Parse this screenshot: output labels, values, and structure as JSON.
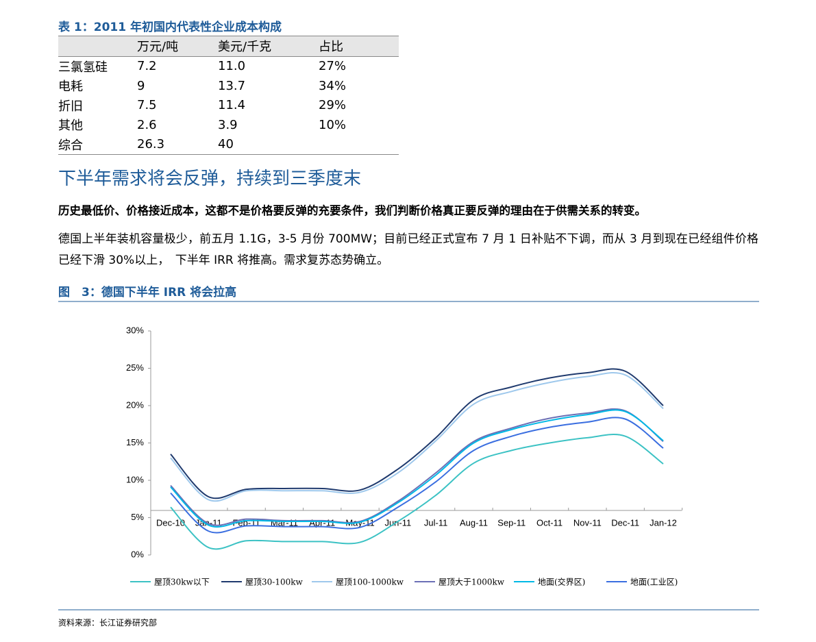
{
  "table": {
    "caption": "表 1：2011 年初国内代表性企业成本构成",
    "headers": [
      "万元/吨",
      "美元/千克",
      "占比"
    ],
    "rows": [
      [
        "三氯氢硅",
        "7.2",
        "11.0",
        "27%"
      ],
      [
        "电耗",
        "9",
        "13.7",
        "34%"
      ],
      [
        "折旧",
        "7.5",
        "11.4",
        "29%"
      ],
      [
        "其他",
        "2.6",
        "3.9",
        "10%"
      ],
      [
        "综合",
        "26.3",
        "40"
      ]
    ]
  },
  "heading": "下半年需求将会反弹，持续到三季度末",
  "bold_paragraph": "历史最低价、价格接近成本，这都不是价格要反弹的充要条件，我们判断价格真正要反弹的理由在于供需关系的转变。",
  "paragraph": "德国上半年装机容量极少，前五月 1.1G，3-5 月份 700MW；目前已经正式宣布 7 月 1 日补贴不下调，而从 3 月到现在已经组件价格已经下滑 30%以上，　下半年 IRR 将推高。需求复苏态势确立。",
  "figure_caption": "图　3：德国下半年 IRR 将会拉高",
  "source": "资料来源：长江证券研究部",
  "chart_data": {
    "type": "line",
    "categories": [
      "Dec-10",
      "Jan-11",
      "Feb-11",
      "Mar-11",
      "Apr-11",
      "May-11",
      "Jun-11",
      "Jul-11",
      "Aug-11",
      "Sep-11",
      "Oct-11",
      "Nov-11",
      "Dec-11",
      "Jan-12"
    ],
    "ylim": [
      0,
      30
    ],
    "yticks": [
      {
        "value": 0,
        "label": "0%"
      },
      {
        "value": 5,
        "label": "5%"
      },
      {
        "value": 10,
        "label": "10%"
      },
      {
        "value": 15,
        "label": "15%"
      },
      {
        "value": 20,
        "label": "20%"
      },
      {
        "value": 25,
        "label": "25%"
      },
      {
        "value": 30,
        "label": "30%"
      }
    ],
    "legend": "bottom",
    "series": [
      {
        "name": "屋顶30kw以下",
        "color": "#3cc2c4",
        "values": [
          6.4,
          1.0,
          1.9,
          1.8,
          1.8,
          1.7,
          4.5,
          8.0,
          12.3,
          14.0,
          15.0,
          15.7,
          15.9,
          12.2
        ]
      },
      {
        "name": "屋顶30-100kw",
        "color": "#1f3a6e",
        "values": [
          13.5,
          7.8,
          8.8,
          8.9,
          8.9,
          8.7,
          11.5,
          15.7,
          20.8,
          22.5,
          23.7,
          24.4,
          24.6,
          20.0
        ]
      },
      {
        "name": "屋顶100-1000kw",
        "color": "#9ec8ec",
        "values": [
          13.0,
          7.4,
          8.6,
          8.6,
          8.6,
          8.4,
          11.0,
          15.3,
          20.2,
          21.9,
          23.1,
          23.9,
          24.1,
          19.6
        ]
      },
      {
        "name": "屋顶大于1000kw",
        "color": "#6b6fb5",
        "values": [
          9.3,
          4.2,
          4.8,
          4.6,
          4.6,
          4.5,
          7.2,
          11.0,
          15.2,
          17.0,
          18.3,
          19.0,
          19.3,
          15.2
        ]
      },
      {
        "name": "地面(交界区)",
        "color": "#00b8e6",
        "values": [
          9.1,
          4.0,
          4.6,
          4.5,
          4.5,
          4.4,
          7.0,
          10.7,
          15.0,
          16.8,
          18.0,
          18.8,
          19.2,
          15.3
        ]
      },
      {
        "name": "地面(工业区)",
        "color": "#3a6ee0",
        "values": [
          8.3,
          3.2,
          3.9,
          3.8,
          3.8,
          3.7,
          6.4,
          9.8,
          14.0,
          15.9,
          17.1,
          17.8,
          18.2,
          14.3
        ]
      }
    ]
  }
}
